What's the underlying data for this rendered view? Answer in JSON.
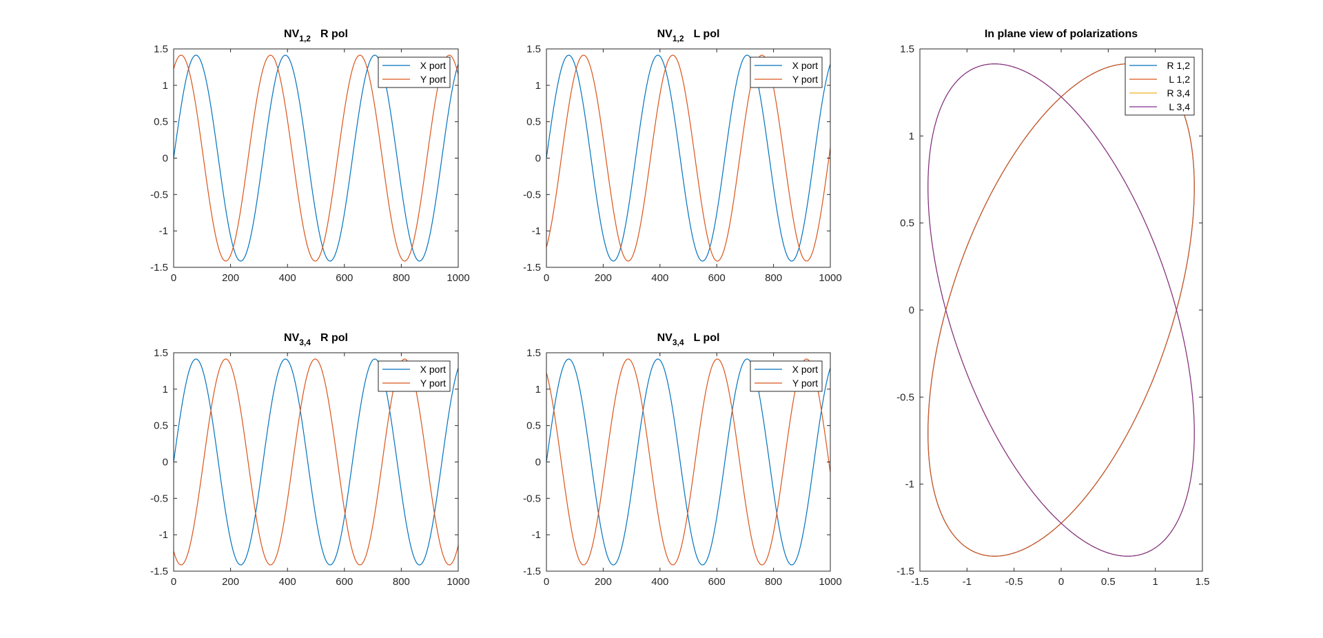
{
  "chart_data": [
    {
      "id": "nv12_r",
      "type": "line",
      "title_main": "NV",
      "title_sub": "1,2",
      "title_rest": "R pol",
      "xlim": [
        0,
        1000
      ],
      "ylim": [
        -1.5,
        1.5
      ],
      "xticks": [
        "0",
        "200",
        "400",
        "600",
        "800",
        "1000"
      ],
      "yticks": [
        "1.5",
        "1",
        "0.5",
        "0",
        "-0.5",
        "-1",
        "-1.5"
      ],
      "legend_position": "top-right",
      "series": [
        {
          "name": "X port",
          "color": "#0072BD",
          "amplitude": 1.414,
          "period": 314.16,
          "phase_deg": 0
        },
        {
          "name": "Y port",
          "color": "#D95319",
          "amplitude": 1.414,
          "period": 314.16,
          "phase_deg": 60
        }
      ]
    },
    {
      "id": "nv12_l",
      "type": "line",
      "title_main": "NV",
      "title_sub": "1,2",
      "title_rest": "L pol",
      "xlim": [
        0,
        1000
      ],
      "ylim": [
        -1.5,
        1.5
      ],
      "xticks": [
        "0",
        "200",
        "400",
        "600",
        "800",
        "1000"
      ],
      "yticks": [
        "1.5",
        "1",
        "0.5",
        "0",
        "-0.5",
        "-1",
        "-1.5"
      ],
      "legend_position": "top-right",
      "series": [
        {
          "name": "X port",
          "color": "#0072BD",
          "amplitude": 1.414,
          "period": 314.16,
          "phase_deg": 0
        },
        {
          "name": "Y port",
          "color": "#D95319",
          "amplitude": 1.414,
          "period": 314.16,
          "phase_deg": -60
        }
      ]
    },
    {
      "id": "nv34_r",
      "type": "line",
      "title_main": "NV",
      "title_sub": "3,4",
      "title_rest": "R pol",
      "xlim": [
        0,
        1000
      ],
      "ylim": [
        -1.5,
        1.5
      ],
      "xticks": [
        "0",
        "200",
        "400",
        "600",
        "800",
        "1000"
      ],
      "yticks": [
        "1.5",
        "1",
        "0.5",
        "0",
        "-0.5",
        "-1",
        "-1.5"
      ],
      "legend_position": "top-right",
      "series": [
        {
          "name": "X port",
          "color": "#0072BD",
          "amplitude": 1.414,
          "period": 314.16,
          "phase_deg": 0
        },
        {
          "name": "Y port",
          "color": "#D95319",
          "amplitude": 1.414,
          "period": 314.16,
          "phase_deg": -120
        }
      ]
    },
    {
      "id": "nv34_l",
      "type": "line",
      "title_main": "NV",
      "title_sub": "3,4",
      "title_rest": "L pol",
      "xlim": [
        0,
        1000
      ],
      "ylim": [
        -1.5,
        1.5
      ],
      "xticks": [
        "0",
        "200",
        "400",
        "600",
        "800",
        "1000"
      ],
      "yticks": [
        "1.5",
        "1",
        "0.5",
        "0",
        "-0.5",
        "-1",
        "-1.5"
      ],
      "legend_position": "top-right",
      "series": [
        {
          "name": "X port",
          "color": "#0072BD",
          "amplitude": 1.414,
          "period": 314.16,
          "phase_deg": 0
        },
        {
          "name": "Y port",
          "color": "#D95319",
          "amplitude": 1.414,
          "period": 314.16,
          "phase_deg": 120
        }
      ]
    },
    {
      "id": "inplane",
      "type": "line",
      "title_main": "In plane view of polarizations",
      "title_sub": "",
      "title_rest": "",
      "xlim": [
        -1.5,
        1.5
      ],
      "ylim": [
        -1.5,
        1.5
      ],
      "xticks": [
        "-1.5",
        "-1",
        "-0.5",
        "0",
        "0.5",
        "1",
        "1.5"
      ],
      "yticks": [
        "1.5",
        "1",
        "0.5",
        "0",
        "-0.5",
        "-1",
        "-1.5"
      ],
      "legend_position": "top-right",
      "series": [
        {
          "name": "R 1,2",
          "color": "#0072BD",
          "amplitude": 1.414,
          "phase_deg": 60,
          "trace": "ellipse"
        },
        {
          "name": "L 1,2",
          "color": "#D95319",
          "amplitude": 1.414,
          "phase_deg": -60,
          "trace": "ellipse"
        },
        {
          "name": "R 3,4",
          "color": "#EDB120",
          "amplitude": 1.414,
          "phase_deg": -120,
          "trace": "ellipse"
        },
        {
          "name": "L 3,4",
          "color": "#7E2F8E",
          "amplitude": 1.414,
          "phase_deg": 120,
          "trace": "ellipse"
        }
      ]
    }
  ]
}
